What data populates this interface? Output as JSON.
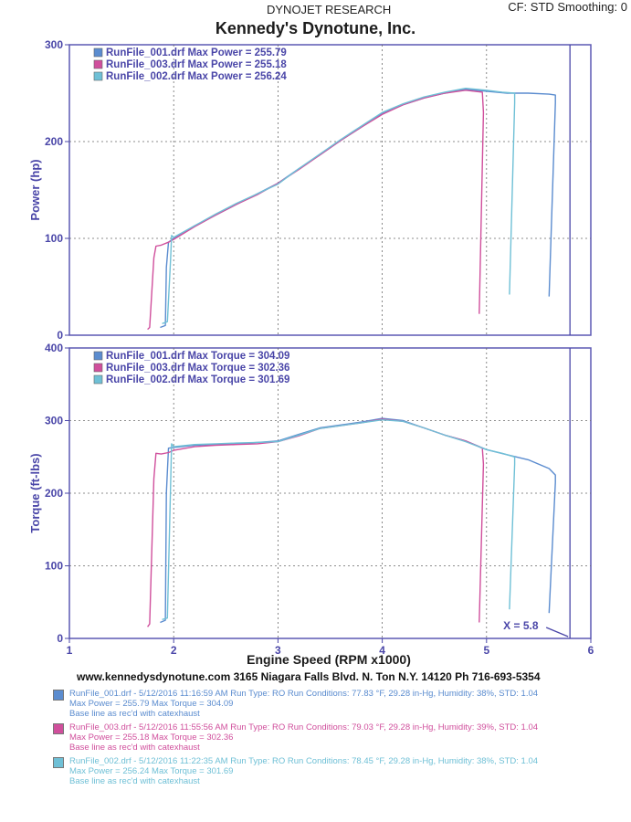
{
  "header": {
    "title": "DYNOJET RESEARCH",
    "cf_smoothing": "CF: STD   Smoothing: 0",
    "company": "Kennedy's Dynotune, Inc."
  },
  "colors": {
    "run_001": "#5b8ccf",
    "run_003": "#d04f9c",
    "run_002": "#6fc0d6",
    "axis": "#4a46a8"
  },
  "chart_data": [
    {
      "type": "line",
      "ylabel": "Power (hp)",
      "xlabel": "",
      "xlim": [
        1,
        6
      ],
      "ylim": [
        0,
        300
      ],
      "yticks": [
        0,
        100,
        200,
        300
      ],
      "grid": true,
      "legend_position": "top-left",
      "legend": [
        "RunFile_001.drf Max Power = 255.79",
        "RunFile_003.drf Max Power = 255.18",
        "RunFile_002.drf Max Power = 256.24"
      ],
      "series": [
        {
          "name": "RunFile_001.drf",
          "color": "#5b8ccf",
          "x": [
            1.87,
            1.92,
            1.93,
            1.95,
            2.0,
            2.2,
            2.4,
            2.6,
            2.8,
            3.0,
            3.2,
            3.4,
            3.6,
            3.8,
            4.0,
            4.2,
            4.4,
            4.6,
            4.8,
            5.0,
            5.2,
            5.4,
            5.6,
            5.66,
            5.66,
            5.6
          ],
          "y": [
            8,
            10,
            70,
            96,
            100,
            113,
            124,
            135,
            146,
            157,
            172,
            186,
            201,
            215,
            229,
            238,
            245,
            250,
            254,
            252,
            250,
            250,
            249,
            248,
            240,
            40
          ]
        },
        {
          "name": "RunFile_003.drf",
          "color": "#d04f9c",
          "x": [
            1.75,
            1.77,
            1.81,
            1.83,
            1.88,
            1.95,
            2.0,
            2.2,
            2.4,
            2.6,
            2.8,
            3.0,
            3.2,
            3.4,
            3.6,
            3.8,
            4.0,
            4.2,
            4.4,
            4.6,
            4.8,
            4.96,
            4.97,
            4.93
          ],
          "y": [
            6,
            8,
            80,
            92,
            93,
            96,
            99,
            112,
            124,
            135,
            145,
            157,
            171,
            186,
            201,
            215,
            228,
            238,
            245,
            250,
            253,
            251,
            230,
            22
          ]
        },
        {
          "name": "RunFile_002.drf",
          "color": "#6fc0d6",
          "x": [
            1.89,
            1.94,
            1.97,
            1.98,
            2.0,
            2.2,
            2.4,
            2.6,
            2.8,
            3.0,
            3.2,
            3.4,
            3.6,
            3.8,
            4.0,
            4.2,
            4.4,
            4.6,
            4.8,
            5.0,
            5.15,
            5.27,
            5.27,
            5.22
          ],
          "y": [
            12,
            14,
            78,
            103,
            101,
            113,
            125,
            136,
            146,
            156,
            172,
            187,
            202,
            216,
            230,
            239,
            246,
            251,
            255,
            253,
            251,
            250,
            240,
            42
          ]
        }
      ]
    },
    {
      "type": "line",
      "ylabel": "Torque (ft-lbs)",
      "xlabel": "Engine Speed (RPM x1000)",
      "xlim": [
        1,
        6
      ],
      "ylim": [
        0,
        400
      ],
      "yticks": [
        0,
        100,
        200,
        300,
        400
      ],
      "xticks": [
        1,
        2,
        3,
        4,
        5,
        6
      ],
      "grid": true,
      "legend_position": "top-left",
      "legend": [
        "RunFile_001.drf Max Torque = 304.09",
        "RunFile_003.drf Max Torque = 302.36",
        "RunFile_002.drf Max Torque = 301.69"
      ],
      "cursor": {
        "x": 5.8,
        "label": "X = 5.8"
      },
      "series": [
        {
          "name": "RunFile_001.drf",
          "color": "#5b8ccf",
          "x": [
            1.87,
            1.92,
            1.93,
            1.95,
            2.0,
            2.2,
            2.4,
            2.6,
            2.8,
            3.0,
            3.2,
            3.4,
            3.6,
            3.8,
            4.0,
            4.2,
            4.4,
            4.6,
            4.8,
            5.0,
            5.2,
            5.4,
            5.6,
            5.66,
            5.66,
            5.6
          ],
          "y": [
            22,
            25,
            200,
            262,
            263,
            266,
            267,
            268,
            270,
            272,
            281,
            290,
            294,
            298,
            303,
            300,
            290,
            280,
            272,
            260,
            253,
            246,
            234,
            225,
            215,
            35
          ]
        },
        {
          "name": "RunFile_003.drf",
          "color": "#d04f9c",
          "x": [
            1.75,
            1.77,
            1.81,
            1.83,
            1.88,
            1.95,
            2.0,
            2.2,
            2.4,
            2.6,
            2.8,
            3.0,
            3.2,
            3.4,
            3.6,
            3.8,
            4.0,
            4.2,
            4.4,
            4.6,
            4.8,
            4.96,
            4.97,
            4.93
          ],
          "y": [
            16,
            20,
            220,
            255,
            254,
            256,
            259,
            264,
            266,
            267,
            268,
            271,
            279,
            289,
            293,
            297,
            302,
            299,
            290,
            280,
            272,
            262,
            240,
            22
          ]
        },
        {
          "name": "RunFile_002.drf",
          "color": "#6fc0d6",
          "x": [
            1.89,
            1.94,
            1.97,
            1.98,
            2.0,
            2.2,
            2.4,
            2.6,
            2.8,
            3.0,
            3.2,
            3.4,
            3.6,
            3.8,
            4.0,
            4.2,
            4.4,
            4.6,
            4.8,
            5.0,
            5.15,
            5.27,
            5.27,
            5.22
          ],
          "y": [
            26,
            28,
            210,
            268,
            264,
            267,
            268,
            269,
            270,
            271,
            280,
            289,
            293,
            297,
            301,
            299,
            290,
            280,
            271,
            260,
            255,
            250,
            240,
            40
          ]
        }
      ]
    }
  ],
  "footer": {
    "address": "www.kennedysdynotune.com 3165 Niagara Falls Blvd. N. Ton N.Y. 14120 Ph 716-693-5354",
    "runs": [
      {
        "line1": "RunFile_001.drf - 5/12/2016 11:16:59 AM   Run Type: RO   Run Conditions: 77.83 °F, 29.28 in-Hg,  Humidity: 38%, STD: 1.04",
        "line2": "Max Power = 255.79  Max Torque = 304.09",
        "line3": "Base line as rec'd with catexhaust",
        "color": "#5b8ccf"
      },
      {
        "line1": "RunFile_003.drf - 5/12/2016 11:55:56 AM   Run Type: RO   Run Conditions: 79.03 °F, 29.28 in-Hg,  Humidity: 39%, STD: 1.04",
        "line2": "Max Power = 255.18  Max Torque = 302.36",
        "line3": "Base line as rec'd with catexhaust",
        "color": "#d04f9c"
      },
      {
        "line1": "RunFile_002.drf - 5/12/2016 11:22:35 AM   Run Type: RO   Run Conditions: 78.45 °F, 29.28 in-Hg,  Humidity: 38%, STD: 1.04",
        "line2": "Max Power = 256.24  Max Torque = 301.69",
        "line3": "Base line as rec'd with catexhaust",
        "color": "#6fc0d6"
      }
    ]
  }
}
